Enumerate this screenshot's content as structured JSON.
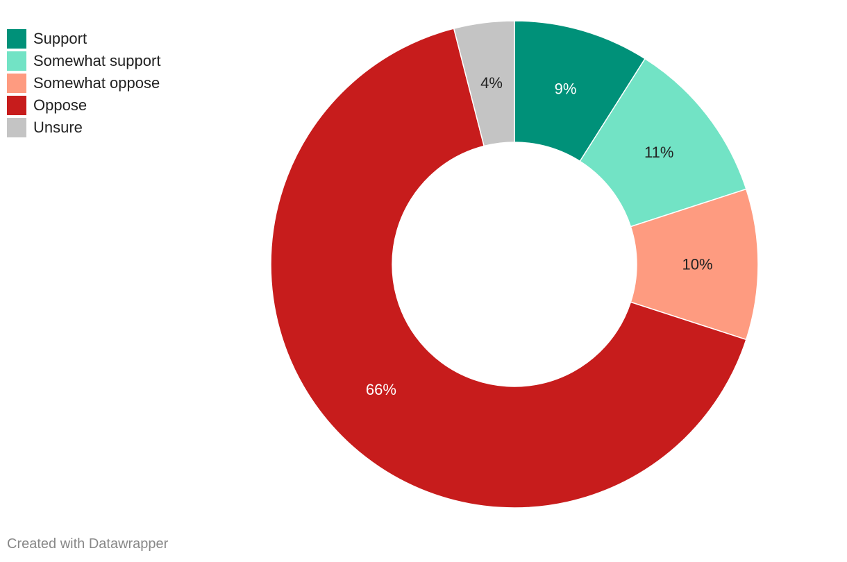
{
  "chart_data": {
    "type": "pie",
    "title": "",
    "legend_position": "top-left",
    "slices": [
      {
        "label": "Support",
        "value": 9,
        "display": "9%",
        "color": "#009179",
        "label_color": "#ffffff"
      },
      {
        "label": "Somewhat support",
        "value": 11,
        "display": "11%",
        "color": "#72e3c5",
        "label_color": "#222222"
      },
      {
        "label": "Somewhat oppose",
        "value": 10,
        "display": "10%",
        "color": "#fe9b80",
        "label_color": "#222222"
      },
      {
        "label": "Oppose",
        "value": 66,
        "display": "66%",
        "color": "#c71c1c",
        "label_color": "#ffffff"
      },
      {
        "label": "Unsure",
        "value": 4,
        "display": "4%",
        "color": "#c4c4c4",
        "label_color": "#222222"
      }
    ]
  },
  "footer": {
    "credit": "Created with Datawrapper"
  }
}
